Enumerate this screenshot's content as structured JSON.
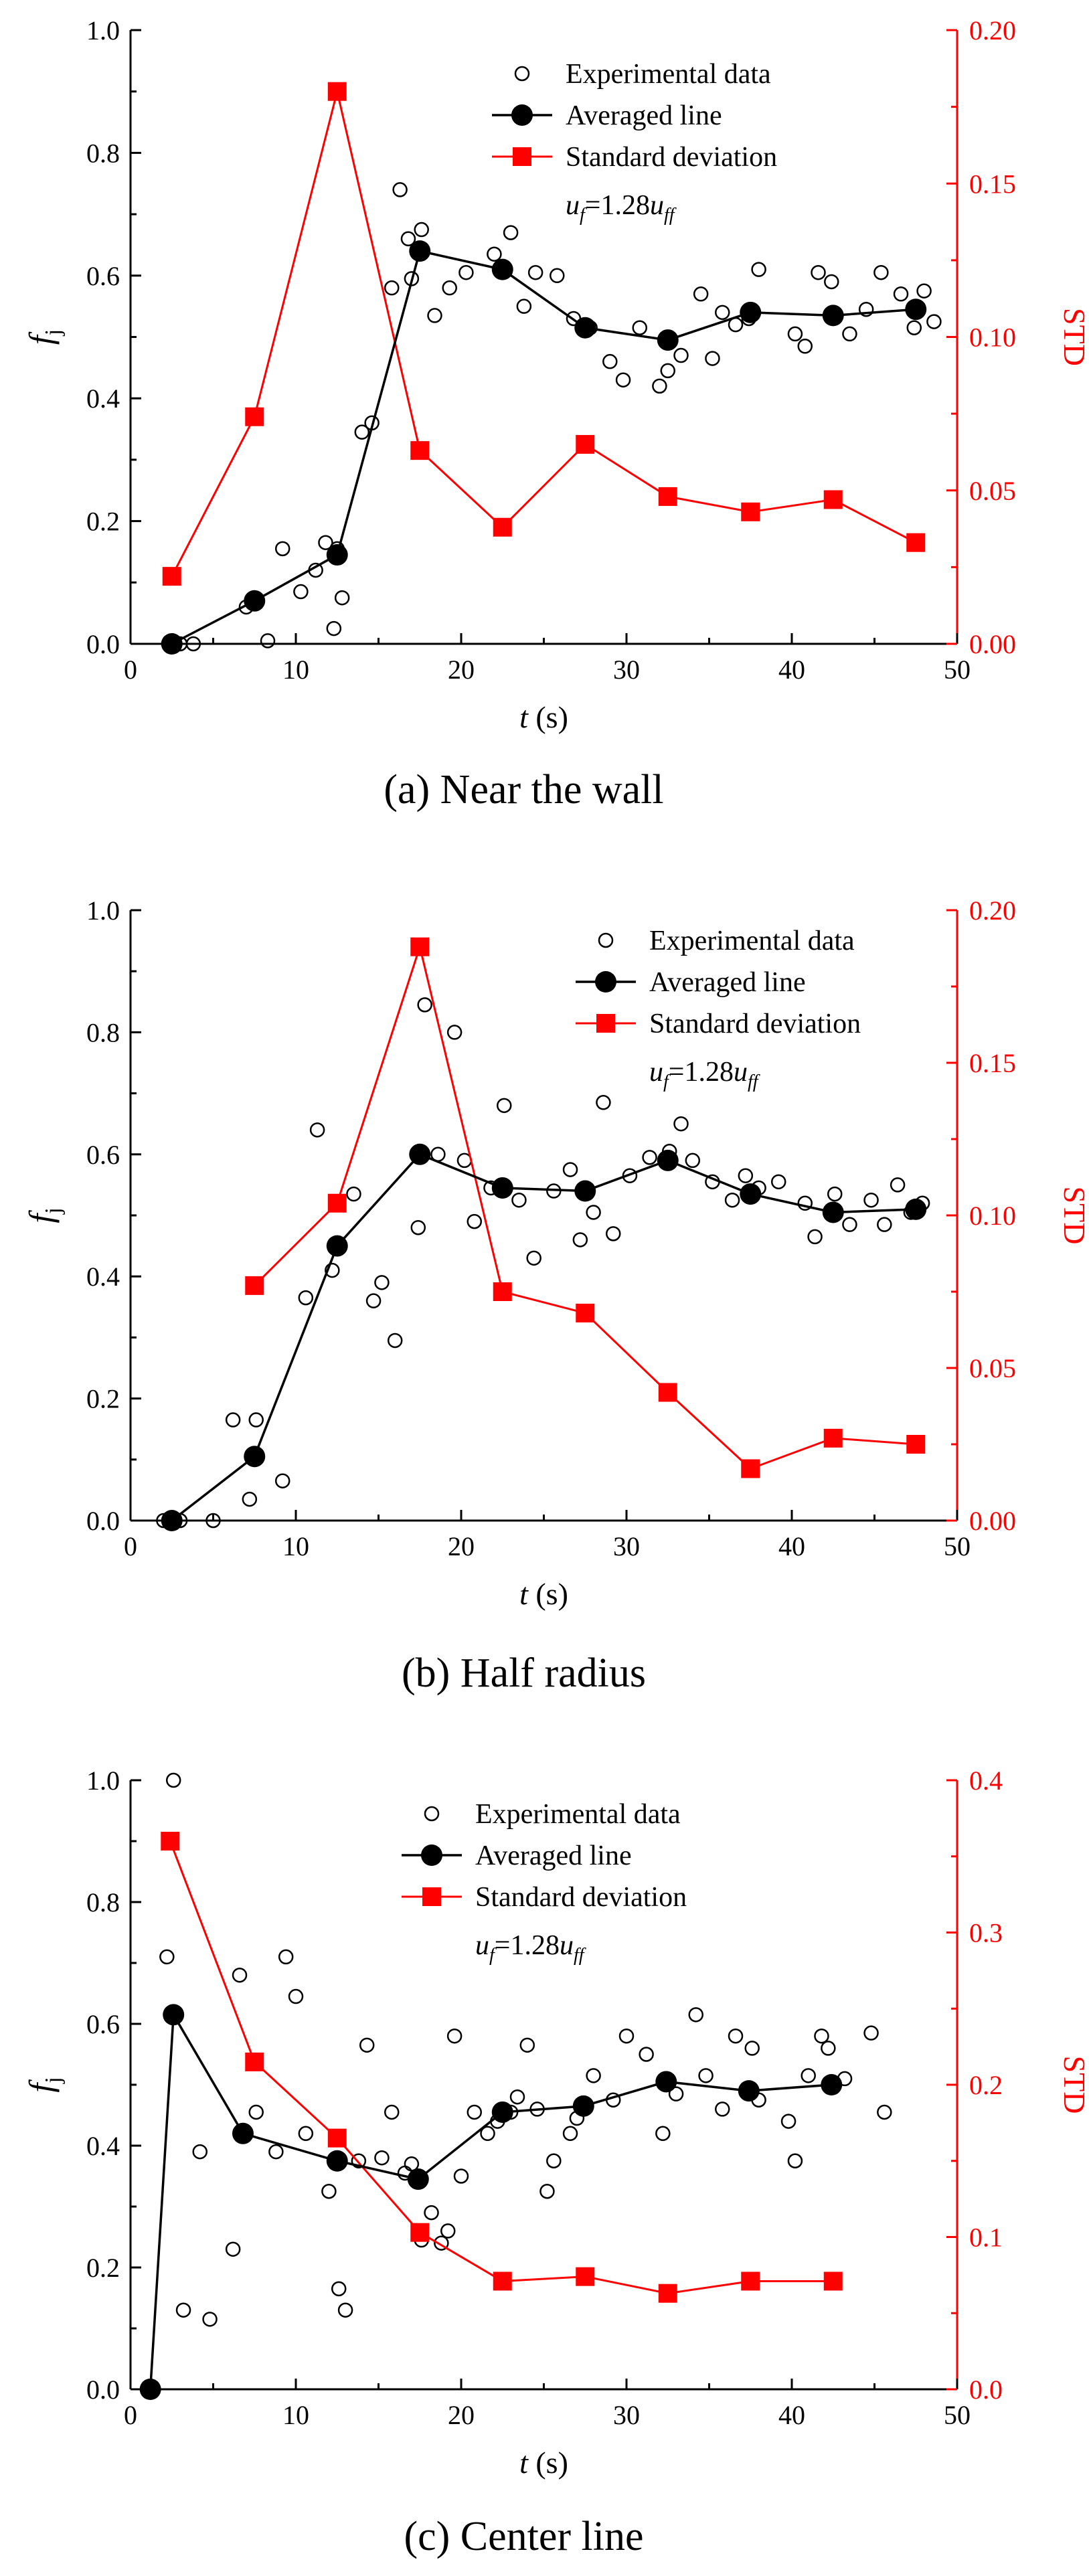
{
  "colors": {
    "axis": "#000000",
    "averaged": "#000000",
    "std": "#ff0000",
    "experimental": "#000000"
  },
  "chart_data": [
    {
      "type": "line",
      "caption": "(a) Near the wall",
      "xlabel_var": "t",
      "xlabel_unit": " (s)",
      "ylabel_main": "f",
      "ylabel_sub": "j",
      "ylabel_right": "STD",
      "xlim": [
        0,
        50
      ],
      "ylim": [
        0,
        1.0
      ],
      "y2lim": [
        0,
        0.2
      ],
      "xticks": [
        0,
        10,
        20,
        30,
        40,
        50
      ],
      "yticks": [
        0.0,
        0.2,
        0.4,
        0.6,
        0.8,
        1.0
      ],
      "y2ticks": [
        0.0,
        0.05,
        0.1,
        0.15,
        0.2
      ],
      "ytick_labels": [
        "0.0",
        "0.2",
        "0.4",
        "0.6",
        "0.8",
        "1.0"
      ],
      "y2tick_labels": [
        "0.00",
        "0.05",
        "0.10",
        "0.15",
        "0.20"
      ],
      "legend": {
        "experimental": "Experimental data",
        "averaged": "Averaged line",
        "std": "Standard deviation",
        "annotation_u": "u",
        "annotation_f": "f",
        "annotation_eq": "=1.28",
        "annotation_u2": "u",
        "annotation_ff": "ff"
      },
      "series": [
        {
          "name": "Averaged line",
          "axis": "left",
          "x": [
            2.5,
            7.5,
            12.5,
            17.5,
            22.5,
            27.5,
            32.5,
            37.5,
            42.5,
            47.5
          ],
          "y": [
            0.0,
            0.07,
            0.145,
            0.64,
            0.61,
            0.515,
            0.495,
            0.54,
            0.535,
            0.545
          ]
        },
        {
          "name": "Standard deviation",
          "axis": "right",
          "x": [
            2.5,
            7.5,
            12.5,
            17.5,
            22.5,
            27.5,
            32.5,
            37.5,
            42.5,
            47.5
          ],
          "y": [
            0.022,
            0.074,
            0.18,
            0.063,
            0.038,
            0.065,
            0.048,
            0.043,
            0.047,
            0.033
          ]
        },
        {
          "name": "Experimental data",
          "axis": "left",
          "x": [
            2.3,
            3.0,
            3.8,
            7.0,
            8.3,
            9.2,
            10.3,
            11.2,
            11.8,
            12.3,
            12.8,
            12.5,
            14.0,
            14.6,
            15.8,
            16.3,
            16.8,
            17.0,
            17.6,
            18.4,
            19.3,
            20.3,
            22.0,
            23.0,
            23.8,
            24.5,
            25.8,
            26.8,
            27.8,
            29.0,
            29.8,
            30.8,
            32.0,
            32.5,
            33.3,
            34.5,
            35.2,
            35.8,
            36.6,
            37.4,
            38.0,
            40.2,
            40.8,
            41.6,
            42.4,
            43.5,
            44.5,
            45.4,
            46.6,
            47.4,
            48.0,
            48.6
          ],
          "y": [
            0.0,
            0.0,
            0.0,
            0.06,
            0.005,
            0.155,
            0.085,
            0.12,
            0.165,
            0.025,
            0.075,
            0.155,
            0.345,
            0.36,
            0.58,
            0.74,
            0.66,
            0.595,
            0.675,
            0.535,
            0.58,
            0.605,
            0.635,
            0.67,
            0.55,
            0.605,
            0.6,
            0.53,
            0.515,
            0.46,
            0.43,
            0.515,
            0.42,
            0.445,
            0.47,
            0.57,
            0.465,
            0.54,
            0.52,
            0.53,
            0.61,
            0.505,
            0.485,
            0.605,
            0.59,
            0.505,
            0.545,
            0.605,
            0.57,
            0.515,
            0.575,
            0.525
          ]
        }
      ]
    },
    {
      "type": "line",
      "caption": "(b) Half radius",
      "xlabel_var": "t",
      "xlabel_unit": " (s)",
      "ylabel_main": "f",
      "ylabel_sub": "j",
      "ylabel_right": "STD",
      "xlim": [
        0,
        50
      ],
      "ylim": [
        0,
        1.0
      ],
      "y2lim": [
        0,
        0.2
      ],
      "xticks": [
        0,
        10,
        20,
        30,
        40,
        50
      ],
      "yticks": [
        0.0,
        0.2,
        0.4,
        0.6,
        0.8,
        1.0
      ],
      "y2ticks": [
        0.0,
        0.05,
        0.1,
        0.15,
        0.2
      ],
      "ytick_labels": [
        "0.0",
        "0.2",
        "0.4",
        "0.6",
        "0.8",
        "1.0"
      ],
      "y2tick_labels": [
        "0.00",
        "0.05",
        "0.10",
        "0.15",
        "0.20"
      ],
      "legend": {
        "experimental": "Experimental data",
        "averaged": "Averaged line",
        "std": "Standard deviation",
        "annotation_u": "u",
        "annotation_f": "f",
        "annotation_eq": "=1.28",
        "annotation_u2": "u",
        "annotation_ff": "ff"
      },
      "series": [
        {
          "name": "Averaged line",
          "axis": "left",
          "x": [
            2.5,
            7.5,
            12.5,
            17.5,
            22.5,
            27.5,
            32.5,
            37.5,
            42.5,
            47.5
          ],
          "y": [
            0.0,
            0.105,
            0.45,
            0.6,
            0.545,
            0.54,
            0.59,
            0.535,
            0.505,
            0.51
          ]
        },
        {
          "name": "Standard deviation",
          "axis": "right",
          "x": [
            7.5,
            12.5,
            17.5,
            22.5,
            27.5,
            32.5,
            37.5,
            42.5,
            47.5
          ],
          "y": [
            0.077,
            0.104,
            0.188,
            0.075,
            0.068,
            0.042,
            0.017,
            0.027,
            0.025
          ]
        },
        {
          "name": "Experimental data",
          "axis": "left",
          "x": [
            2.0,
            3.0,
            5.0,
            6.2,
            7.2,
            7.6,
            9.2,
            10.6,
            11.3,
            12.2,
            13.5,
            14.7,
            15.2,
            16.0,
            17.4,
            17.8,
            18.6,
            19.6,
            20.2,
            20.8,
            21.8,
            22.6,
            23.5,
            24.4,
            25.6,
            26.6,
            27.2,
            28.0,
            28.6,
            29.2,
            30.2,
            31.4,
            32.6,
            33.3,
            34.0,
            35.2,
            36.4,
            37.2,
            38.0,
            39.2,
            40.8,
            41.4,
            42.6,
            43.5,
            44.8,
            45.6,
            46.4,
            47.2,
            47.9
          ],
          "y": [
            0.0,
            0.0,
            0.0,
            0.165,
            0.035,
            0.165,
            0.065,
            0.365,
            0.64,
            0.41,
            0.535,
            0.36,
            0.39,
            0.295,
            0.48,
            0.845,
            0.6,
            0.8,
            0.59,
            0.49,
            0.545,
            0.68,
            0.525,
            0.43,
            0.54,
            0.575,
            0.46,
            0.505,
            0.685,
            0.47,
            0.565,
            0.595,
            0.605,
            0.65,
            0.59,
            0.555,
            0.525,
            0.565,
            0.545,
            0.555,
            0.52,
            0.465,
            0.535,
            0.485,
            0.525,
            0.485,
            0.55,
            0.505,
            0.52
          ]
        }
      ]
    },
    {
      "type": "line",
      "caption": "(c) Center line",
      "xlabel_var": "t",
      "xlabel_unit": " (s)",
      "ylabel_main": "f",
      "ylabel_sub": "j",
      "ylabel_right": "STD",
      "xlim": [
        0,
        50
      ],
      "ylim": [
        0,
        1.0
      ],
      "y2lim": [
        0,
        0.4
      ],
      "xticks": [
        0,
        10,
        20,
        30,
        40,
        50
      ],
      "yticks": [
        0.0,
        0.2,
        0.4,
        0.6,
        0.8,
        1.0
      ],
      "y2ticks": [
        0.0,
        0.1,
        0.2,
        0.3,
        0.4
      ],
      "ytick_labels": [
        "0.0",
        "0.2",
        "0.4",
        "0.6",
        "0.8",
        "1.0"
      ],
      "y2tick_labels": [
        "0.0",
        "0.1",
        "0.2",
        "0.3",
        "0.4"
      ],
      "legend": {
        "experimental": "Experimental data",
        "averaged": "Averaged line",
        "std": "Standard deviation",
        "annotation_u": "u",
        "annotation_f": "f",
        "annotation_eq": "=1.28",
        "annotation_u2": "u",
        "annotation_ff": "ff"
      },
      "series": [
        {
          "name": "Averaged line",
          "axis": "left",
          "x": [
            1.2,
            2.6,
            6.8,
            12.5,
            17.4,
            22.5,
            27.4,
            32.4,
            37.4,
            42.4
          ],
          "y": [
            0.0,
            0.615,
            0.42,
            0.375,
            0.345,
            0.455,
            0.465,
            0.505,
            0.49,
            0.5
          ]
        },
        {
          "name": "Standard deviation",
          "axis": "right",
          "x": [
            2.4,
            7.5,
            12.5,
            17.5,
            22.5,
            27.5,
            32.5,
            37.5,
            42.5
          ],
          "y": [
            0.36,
            0.215,
            0.165,
            0.103,
            0.071,
            0.074,
            0.063,
            0.071,
            0.071
          ]
        },
        {
          "name": "Experimental data",
          "axis": "left",
          "x": [
            2.2,
            2.6,
            3.2,
            4.2,
            4.8,
            6.2,
            6.6,
            7.6,
            8.8,
            9.4,
            10.0,
            10.6,
            12.0,
            12.6,
            13.0,
            13.8,
            14.3,
            15.2,
            15.8,
            16.6,
            17.0,
            17.6,
            18.2,
            18.8,
            19.2,
            19.6,
            20.0,
            20.8,
            21.6,
            22.2,
            23.0,
            23.4,
            24.0,
            24.6,
            25.2,
            25.6,
            26.6,
            27.0,
            28.0,
            29.2,
            30.0,
            31.2,
            32.2,
            33.0,
            34.2,
            34.8,
            35.8,
            36.6,
            37.6,
            38.0,
            39.8,
            40.2,
            41.0,
            41.8,
            42.2,
            43.2,
            44.8,
            45.6
          ],
          "y": [
            0.71,
            1.0,
            0.13,
            0.39,
            0.115,
            0.23,
            0.68,
            0.455,
            0.39,
            0.71,
            0.645,
            0.42,
            0.325,
            0.165,
            0.13,
            0.375,
            0.565,
            0.38,
            0.455,
            0.355,
            0.37,
            0.245,
            0.29,
            0.24,
            0.26,
            0.58,
            0.35,
            0.455,
            0.42,
            0.44,
            0.455,
            0.48,
            0.565,
            0.46,
            0.325,
            0.375,
            0.42,
            0.445,
            0.515,
            0.475,
            0.58,
            0.55,
            0.42,
            0.485,
            0.615,
            0.515,
            0.46,
            0.58,
            0.56,
            0.475,
            0.44,
            0.375,
            0.515,
            0.58,
            0.56,
            0.51,
            0.585,
            0.455
          ]
        }
      ]
    }
  ]
}
